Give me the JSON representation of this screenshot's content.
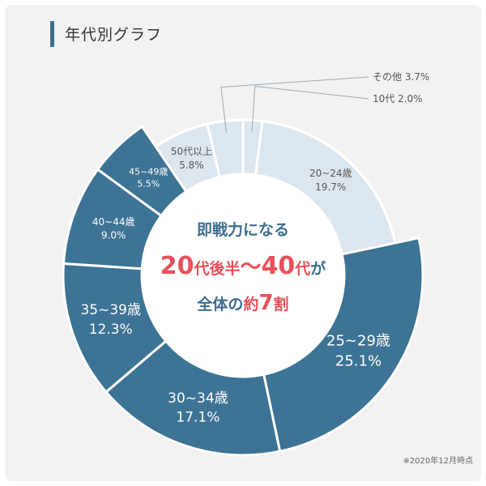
{
  "page": {
    "title": "年代別グラフ",
    "note": "※2020年12月時点"
  },
  "colors": {
    "dark": "#3d7394",
    "light": "#dce6ee",
    "center_blue": "#3d6e8f",
    "center_red": "#e8505b",
    "label_dark": "#555555",
    "leader": "#9aa9b5"
  },
  "center_text": {
    "line1": "即戦力になる",
    "line2_a": "20",
    "line2_b": "代後半",
    "line2_c": "〜",
    "line2_d": "40",
    "line2_e": "代",
    "line2_f": "が",
    "line3_a": "全体の",
    "line3_b": "約",
    "line3_c": "7",
    "line3_d": "割"
  },
  "chart_data": {
    "type": "pie",
    "donut": true,
    "categories": [
      "10代",
      "20~24歳",
      "25~29歳",
      "30~34歳",
      "35~39歳",
      "40~44歳",
      "45~49歳",
      "50代以上",
      "その他"
    ],
    "values": [
      2.0,
      19.7,
      25.1,
      17.1,
      12.3,
      9.0,
      5.5,
      5.8,
      3.7
    ],
    "value_labels": [
      "2.0%",
      "19.7%",
      "25.1%",
      "17.1%",
      "12.3%",
      "9.0%",
      "5.5%",
      "5.8%",
      "3.7%"
    ],
    "highlighted": [
      false,
      false,
      true,
      true,
      true,
      true,
      true,
      false,
      false
    ],
    "external_labels": [
      "10代 2.0%",
      "その他 3.7%"
    ]
  }
}
